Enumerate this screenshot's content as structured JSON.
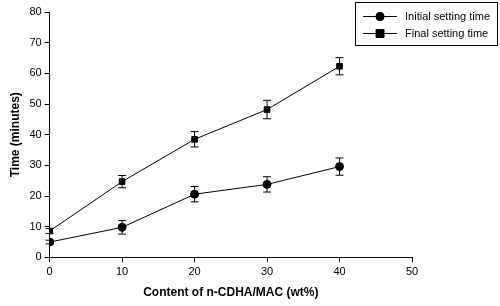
{
  "chart_data": {
    "type": "line",
    "x_label": "Content of n-CDHA/MAC (wt%)",
    "y_label": "Time (minutes)",
    "x": [
      0,
      10,
      20,
      30,
      40
    ],
    "series": [
      {
        "name": "Initial setting time",
        "color": "#000000",
        "marker": "circle",
        "line_style": "solid",
        "values": [
          5.0,
          9.8,
          20.6,
          23.8,
          29.6
        ],
        "errors": [
          0.6,
          2.2,
          2.5,
          2.5,
          2.8
        ]
      },
      {
        "name": "Final setting time",
        "color": "#000000",
        "marker": "square",
        "line_style": "solid",
        "values": [
          8.6,
          24.7,
          38.5,
          48.2,
          62.3
        ],
        "errors": [
          0.8,
          2.0,
          2.5,
          3.0,
          2.8
        ]
      }
    ],
    "xlim": [
      0,
      50
    ],
    "xticks": [
      0,
      10,
      20,
      30,
      40,
      50
    ],
    "ylim": [
      0,
      80
    ],
    "yticks": [
      0,
      10,
      20,
      30,
      40,
      50,
      60,
      70,
      80
    ],
    "grid": false,
    "legend": "top-right"
  }
}
